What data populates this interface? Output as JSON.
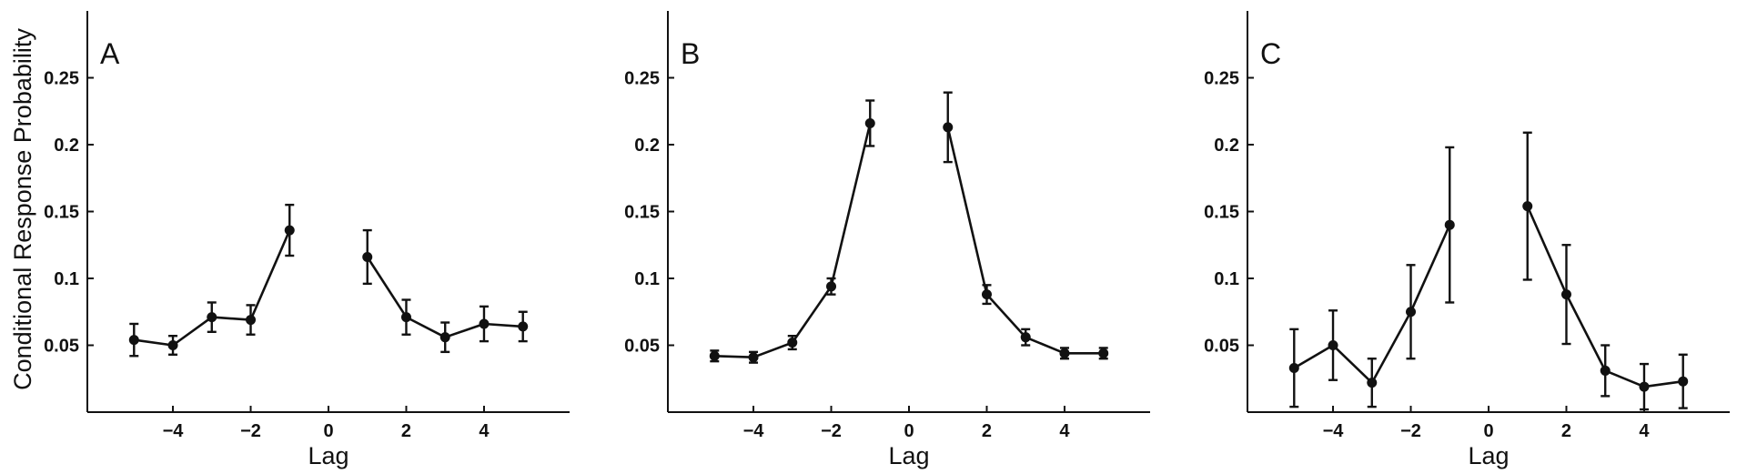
{
  "figure": {
    "ylabel": "Conditional Response Probability",
    "xlabel": "Lag"
  },
  "chart_data": [
    {
      "type": "line",
      "panel_label": "A",
      "xlabel": "Lag",
      "ylabel": "Conditional Response Probability",
      "xlim": [
        -6.2,
        6.2
      ],
      "ylim": [
        0,
        0.3
      ],
      "xticks": [
        -4,
        -2,
        0,
        2,
        4
      ],
      "xtick_labels": [
        "−4",
        "−2",
        "0",
        "2",
        "4"
      ],
      "yticks": [
        0.05,
        0.1,
        0.15,
        0.2,
        0.25
      ],
      "ytick_labels": [
        "0.05",
        "0.1",
        "0.15",
        "0.2",
        "0.25"
      ],
      "grid": false,
      "segments": [
        [
          {
            "x": -5,
            "y": 0.054,
            "err": 0.012
          },
          {
            "x": -4,
            "y": 0.05,
            "err": 0.007
          },
          {
            "x": -3,
            "y": 0.071,
            "err": 0.011
          },
          {
            "x": -2,
            "y": 0.069,
            "err": 0.011
          },
          {
            "x": -1,
            "y": 0.136,
            "err": 0.019
          }
        ],
        [
          {
            "x": 1,
            "y": 0.116,
            "err": 0.02
          },
          {
            "x": 2,
            "y": 0.071,
            "err": 0.013
          },
          {
            "x": 3,
            "y": 0.056,
            "err": 0.011
          },
          {
            "x": 4,
            "y": 0.066,
            "err": 0.013
          },
          {
            "x": 5,
            "y": 0.064,
            "err": 0.011
          }
        ]
      ]
    },
    {
      "type": "line",
      "panel_label": "B",
      "xlabel": "Lag",
      "ylabel": "",
      "xlim": [
        -6.2,
        6.2
      ],
      "ylim": [
        0,
        0.3
      ],
      "xticks": [
        -4,
        -2,
        0,
        2,
        4
      ],
      "xtick_labels": [
        "−4",
        "−2",
        "0",
        "2",
        "4"
      ],
      "yticks": [
        0.05,
        0.1,
        0.15,
        0.2,
        0.25
      ],
      "ytick_labels": [
        "0.05",
        "0.1",
        "0.15",
        "0.2",
        "0.25"
      ],
      "grid": false,
      "segments": [
        [
          {
            "x": -5,
            "y": 0.042,
            "err": 0.004
          },
          {
            "x": -4,
            "y": 0.041,
            "err": 0.004
          },
          {
            "x": -3,
            "y": 0.052,
            "err": 0.005
          },
          {
            "x": -2,
            "y": 0.094,
            "err": 0.006
          },
          {
            "x": -1,
            "y": 0.216,
            "err": 0.017
          }
        ],
        [
          {
            "x": 1,
            "y": 0.213,
            "err": 0.026
          },
          {
            "x": 2,
            "y": 0.088,
            "err": 0.007
          },
          {
            "x": 3,
            "y": 0.056,
            "err": 0.006
          },
          {
            "x": 4,
            "y": 0.044,
            "err": 0.004
          },
          {
            "x": 5,
            "y": 0.044,
            "err": 0.004
          }
        ]
      ]
    },
    {
      "type": "line",
      "panel_label": "C",
      "xlabel": "Lag",
      "ylabel": "",
      "xlim": [
        -6.2,
        6.2
      ],
      "ylim": [
        0,
        0.3
      ],
      "xticks": [
        -4,
        -2,
        0,
        2,
        4
      ],
      "xtick_labels": [
        "−4",
        "−2",
        "0",
        "2",
        "4"
      ],
      "yticks": [
        0.05,
        0.1,
        0.15,
        0.2,
        0.25
      ],
      "ytick_labels": [
        "0.05",
        "0.1",
        "0.15",
        "0.2",
        "0.25"
      ],
      "grid": false,
      "segments": [
        [
          {
            "x": -5,
            "y": 0.033,
            "err": 0.029
          },
          {
            "x": -4,
            "y": 0.05,
            "err": 0.026
          },
          {
            "x": -3,
            "y": 0.022,
            "err": 0.018
          },
          {
            "x": -2,
            "y": 0.075,
            "err": 0.035
          },
          {
            "x": -1,
            "y": 0.14,
            "err": 0.058
          }
        ],
        [
          {
            "x": 1,
            "y": 0.154,
            "err": 0.055
          },
          {
            "x": 2,
            "y": 0.088,
            "err": 0.037
          },
          {
            "x": 3,
            "y": 0.031,
            "err": 0.019
          },
          {
            "x": 4,
            "y": 0.019,
            "err": 0.017
          },
          {
            "x": 5,
            "y": 0.023,
            "err": 0.02
          }
        ]
      ]
    }
  ]
}
